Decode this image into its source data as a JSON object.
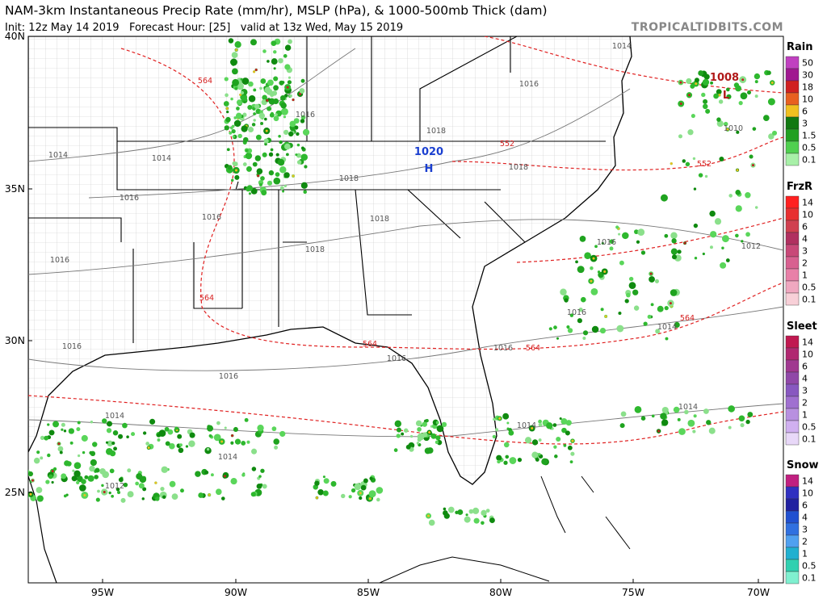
{
  "header": {
    "title": "NAM-3km Instantaneous Precip Rate (mm/hr), MSLP (hPa), & 1000-500mb Thick (dam)",
    "subtitle": "Init: 12z May 14 2019   Forecast Hour: [25]   valid at 13z Wed, May 15 2019",
    "watermark": "TROPICALTIDBITS.COM"
  },
  "axes": {
    "latitudes": [
      "40N",
      "35N",
      "30N",
      "25N"
    ],
    "longitudes": [
      "95W",
      "90W",
      "85W",
      "80W",
      "75W",
      "70W"
    ]
  },
  "legend": [
    {
      "title": "Rain",
      "labels": [
        "50",
        "30",
        "18",
        "10",
        "6",
        "3",
        "1.5",
        "0.5",
        "0.1"
      ]
    },
    {
      "title": "FrzR",
      "labels": [
        "14",
        "10",
        "6",
        "4",
        "3",
        "2",
        "1",
        "0.5",
        "0.1"
      ]
    },
    {
      "title": "Sleet",
      "labels": [
        "14",
        "10",
        "6",
        "4",
        "3",
        "2",
        "1",
        "0.5",
        "0.1"
      ]
    },
    {
      "title": "Snow",
      "labels": [
        "14",
        "10",
        "6",
        "4",
        "3",
        "2",
        "1",
        "0.5",
        "0.1"
      ]
    }
  ],
  "map": {
    "isobar_labels": [
      "1014",
      "1016",
      "1016",
      "1018",
      "1018",
      "1018",
      "1014",
      "1014",
      "1016",
      "1016",
      "1018",
      "1018",
      "1016",
      "1016",
      "1012",
      "1016",
      "1014",
      "1016",
      "1016",
      "1016",
      "1016",
      "1014",
      "1014",
      "1014",
      "1014",
      "1012",
      "1010"
    ],
    "thickness_labels": [
      "564",
      "552",
      "552",
      "564",
      "564",
      "564",
      "564"
    ],
    "high": {
      "pressure": "1020",
      "symbol": "H"
    },
    "low": {
      "pressure": "1008",
      "symbol": "L"
    }
  }
}
